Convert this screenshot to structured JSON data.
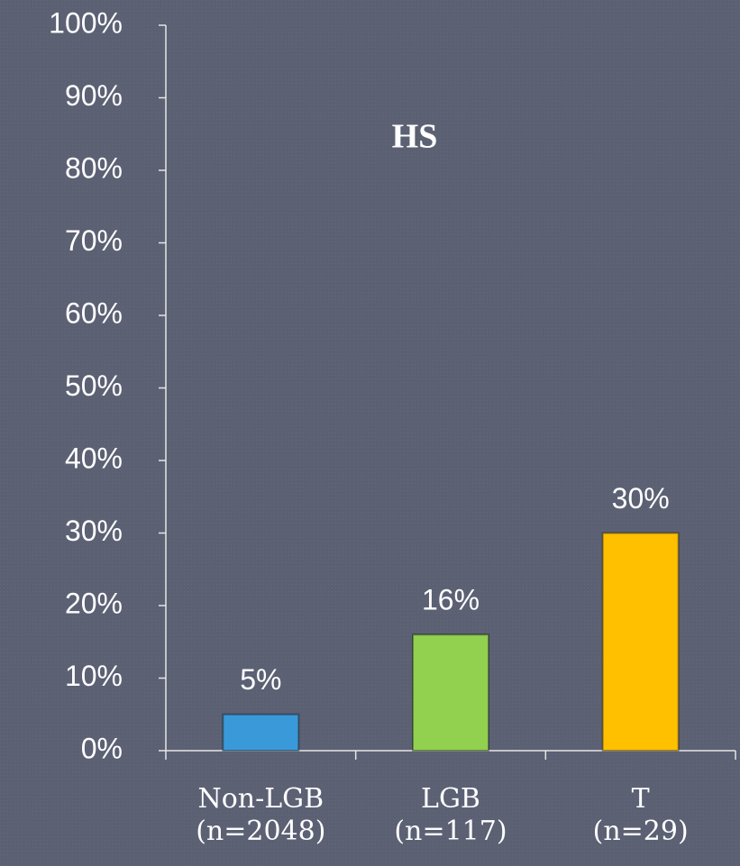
{
  "chart_data": {
    "type": "bar",
    "title": "HS",
    "categories": [
      "Non-LGB\n(n=2048)",
      "LGB\n(n=117)",
      "T\n(n=29)"
    ],
    "values": [
      5,
      16,
      30
    ],
    "value_labels": [
      "5%",
      "16%",
      "30%"
    ],
    "colors": [
      "#3a9ad9",
      "#92d050",
      "#ffc000"
    ],
    "ylim": [
      0,
      100
    ],
    "yticks": [
      {
        "value": 0,
        "label": "0%"
      },
      {
        "value": 10,
        "label": "10%"
      },
      {
        "value": 20,
        "label": "20%"
      },
      {
        "value": 30,
        "label": "30%"
      },
      {
        "value": 40,
        "label": "40%"
      },
      {
        "value": 50,
        "label": "50%"
      },
      {
        "value": 60,
        "label": "60%"
      },
      {
        "value": 70,
        "label": "70%"
      },
      {
        "value": 80,
        "label": "80%"
      },
      {
        "value": 90,
        "label": "90%"
      },
      {
        "value": 100,
        "label": "100%"
      }
    ],
    "grid": false
  }
}
